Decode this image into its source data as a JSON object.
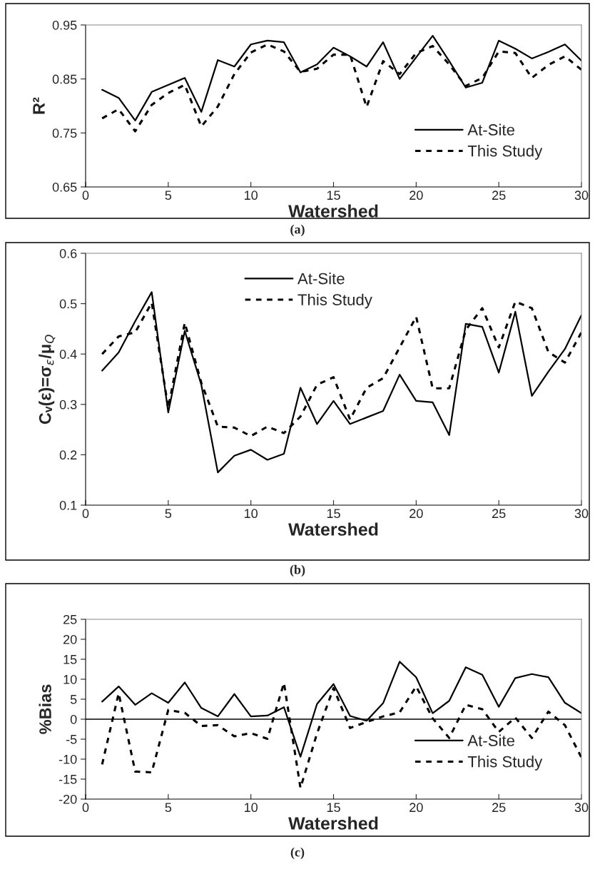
{
  "chart_data": [
    {
      "type": "line",
      "xlabel": "Watershed",
      "ylabel": "R²",
      "annotations": [
        "(a)"
      ],
      "x": [
        1,
        2,
        3,
        4,
        5,
        6,
        7,
        8,
        9,
        10,
        11,
        12,
        13,
        14,
        15,
        16,
        17,
        18,
        19,
        20,
        21,
        22,
        23,
        24,
        25,
        26,
        27,
        28,
        29,
        30
      ],
      "series": [
        {
          "name": "At-Site",
          "color": "#000000",
          "line_style": "solid",
          "values": [
            0.83,
            0.815,
            0.773,
            0.826,
            0.839,
            0.852,
            0.789,
            0.885,
            0.873,
            0.914,
            0.921,
            0.918,
            0.862,
            0.877,
            0.908,
            0.892,
            0.873,
            0.918,
            0.85,
            0.89,
            0.93,
            0.883,
            0.834,
            0.843,
            0.921,
            0.906,
            0.888,
            0.9,
            0.914,
            0.884
          ]
        },
        {
          "name": "This Study",
          "color": "#000000",
          "line_style": "dashed",
          "values": [
            0.777,
            0.794,
            0.753,
            0.802,
            0.824,
            0.839,
            0.762,
            0.799,
            0.859,
            0.899,
            0.914,
            0.901,
            0.863,
            0.869,
            0.895,
            0.895,
            0.798,
            0.883,
            0.859,
            0.898,
            0.911,
            0.877,
            0.837,
            0.852,
            0.901,
            0.898,
            0.852,
            0.876,
            0.892,
            0.867
          ]
        }
      ],
      "xlim": [
        0,
        30
      ],
      "xticks": [
        0,
        5,
        10,
        15,
        20,
        25,
        30
      ],
      "ylim": [
        0.65,
        0.95
      ],
      "yticks": [
        0.65,
        0.75,
        0.85,
        0.95
      ],
      "grid": false,
      "legend": "bottom right",
      "marker": "none"
    },
    {
      "type": "line",
      "xlabel": "Watershed",
      "ylabel": "Cᵥ(ε)=σ$_{ε}$/μ$_{Q}$",
      "annotations": [
        "(b)"
      ],
      "x": [
        1,
        2,
        3,
        4,
        5,
        6,
        7,
        8,
        9,
        10,
        11,
        12,
        13,
        14,
        15,
        16,
        17,
        18,
        19,
        20,
        21,
        22,
        23,
        24,
        25,
        26,
        27,
        28,
        29,
        30
      ],
      "series": [
        {
          "name": "At-Site",
          "color": "#000000",
          "line_style": "solid",
          "values": [
            0.367,
            0.403,
            0.465,
            0.523,
            0.284,
            0.446,
            0.339,
            0.165,
            0.198,
            0.21,
            0.19,
            0.202,
            0.333,
            0.261,
            0.307,
            0.261,
            0.274,
            0.287,
            0.359,
            0.307,
            0.304,
            0.239,
            0.46,
            0.454,
            0.363,
            0.484,
            0.317,
            0.365,
            0.41,
            0.477
          ]
        },
        {
          "name": "This Study",
          "color": "#000000",
          "line_style": "dashed",
          "values": [
            0.4,
            0.435,
            0.443,
            0.502,
            0.293,
            0.462,
            0.343,
            0.256,
            0.254,
            0.237,
            0.256,
            0.243,
            0.276,
            0.339,
            0.354,
            0.27,
            0.333,
            0.352,
            0.413,
            0.474,
            0.332,
            0.332,
            0.448,
            0.491,
            0.413,
            0.504,
            0.491,
            0.404,
            0.383,
            0.443
          ]
        }
      ],
      "xlim": [
        0,
        30
      ],
      "xticks": [
        0,
        5,
        10,
        15,
        20,
        25,
        30
      ],
      "ylim": [
        0.1,
        0.6
      ],
      "yticks": [
        0.1,
        0.2,
        0.3,
        0.4,
        0.5,
        0.6
      ],
      "grid": false,
      "legend": "top",
      "marker": "none"
    },
    {
      "type": "line",
      "xlabel": "Watershed",
      "ylabel": "%Bias",
      "annotations": [
        "(c)"
      ],
      "x": [
        1,
        2,
        3,
        4,
        5,
        6,
        7,
        8,
        9,
        10,
        11,
        12,
        13,
        14,
        15,
        16,
        17,
        18,
        19,
        20,
        21,
        22,
        23,
        24,
        25,
        26,
        27,
        28,
        29,
        30
      ],
      "series": [
        {
          "name": "At-Site",
          "color": "#000000",
          "line_style": "solid",
          "values": [
            4.4,
            8.2,
            3.6,
            6.5,
            4.1,
            9.2,
            2.8,
            0.7,
            6.3,
            0.7,
            0.9,
            3.0,
            -9.4,
            3.8,
            8.8,
            0.8,
            -0.4,
            4.0,
            14.4,
            10.5,
            1.5,
            4.6,
            13.0,
            11.1,
            3.1,
            10.3,
            11.3,
            10.5,
            4.1,
            1.5
          ]
        },
        {
          "name": "This Study",
          "color": "#000000",
          "line_style": "dashed",
          "values": [
            -11.3,
            6.5,
            -13.1,
            -13.3,
            2.3,
            1.6,
            -1.7,
            -1.5,
            -4.3,
            -3.5,
            -4.9,
            9.1,
            -17.2,
            -3.6,
            7.8,
            -2.2,
            -0.7,
            0.7,
            1.7,
            8.2,
            0.2,
            -4.7,
            3.6,
            2.5,
            -3.2,
            0.4,
            -4.7,
            1.9,
            -1.5,
            -9.6
          ]
        }
      ],
      "xlim": [
        0,
        30
      ],
      "xticks": [
        0,
        5,
        10,
        15,
        20,
        25,
        30
      ],
      "ylim": [
        -20,
        25
      ],
      "yticks": [
        -20,
        -15,
        -10,
        -5,
        0,
        5,
        10,
        15,
        20,
        25
      ],
      "grid": false,
      "legend": "bottom right",
      "marker": "none",
      "ref_lines": [
        {
          "axis": "y",
          "value": 0,
          "color": "#000000",
          "line_style": "solid"
        }
      ]
    }
  ]
}
